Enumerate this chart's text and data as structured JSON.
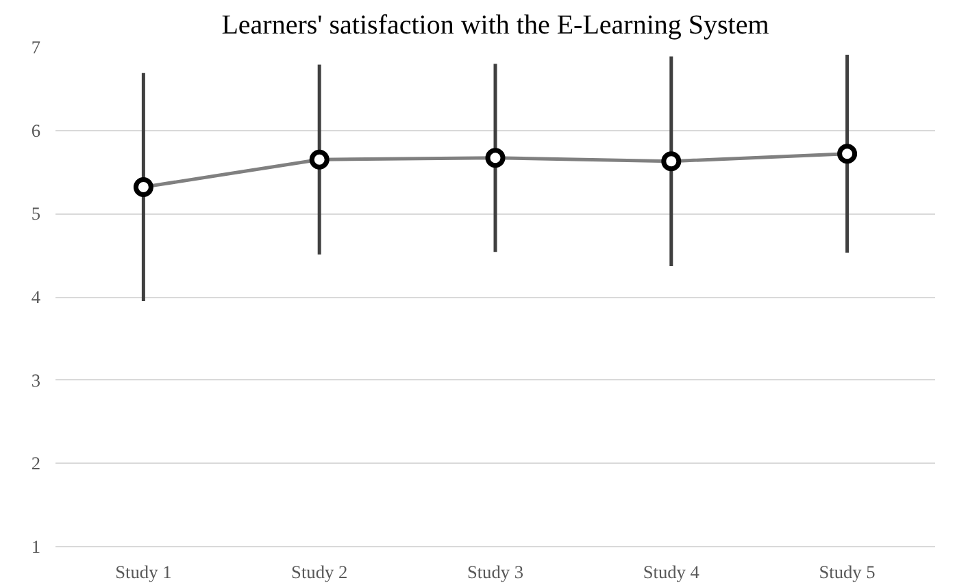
{
  "chart_data": {
    "type": "line",
    "title": "Learners' satisfaction with the E-Learning System",
    "categories": [
      "Study 1",
      "Study 2",
      "Study 3",
      "Study 4",
      "Study 5"
    ],
    "series": [
      {
        "color": "#808080",
        "values": [
          5.32,
          5.65,
          5.67,
          5.63,
          5.72
        ],
        "errors": [
          1.37,
          1.14,
          1.13,
          1.26,
          1.19
        ]
      }
    ],
    "ylim": [
      1,
      7
    ],
    "yticks": [
      1,
      2,
      3,
      4,
      5,
      6,
      7
    ],
    "grid": "y",
    "marker": "circle",
    "line_style": "solid"
  }
}
